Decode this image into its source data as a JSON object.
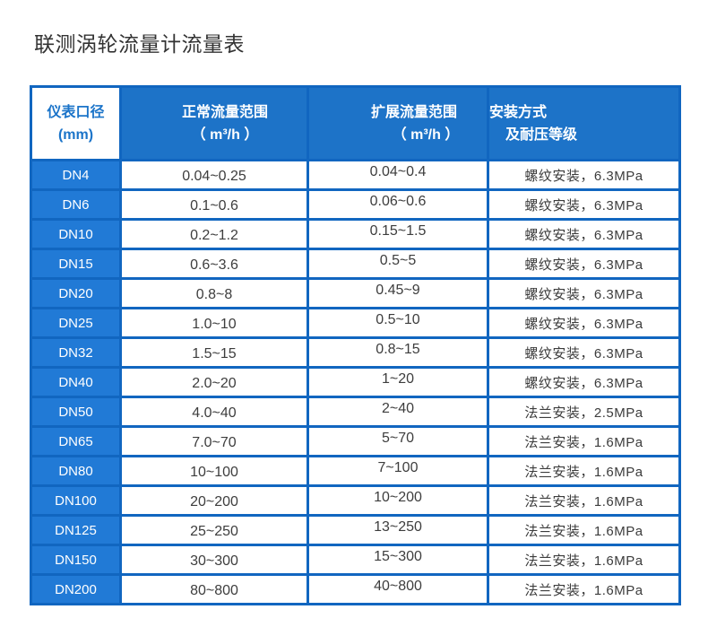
{
  "page": {
    "title": "联测涡轮流量计流量表"
  },
  "colors": {
    "header_bg": "#1d73c8",
    "row_label_bg": "#217ad6",
    "border_blue": "#1166c0",
    "header_text": "#ffffff",
    "first_header_text": "#1b74c9",
    "cell_text": "#3d3d3d",
    "title_text": "#333333"
  },
  "table": {
    "headers": [
      {
        "line1": "仪表口径",
        "line2": "(mm)"
      },
      {
        "line1": "正常流量范围",
        "line2": "（ m³/h ）"
      },
      {
        "line1": "扩展流量范围",
        "line2": "（ m³/h ）"
      },
      {
        "line1": "安装方式",
        "line2": "及耐压等级"
      }
    ],
    "rows": [
      {
        "dn": "DN4",
        "normal": "0.04~0.25",
        "extended": "0.04~0.4",
        "install": "螺纹安装，6.3MPa"
      },
      {
        "dn": "DN6",
        "normal": "0.1~0.6",
        "extended": "0.06~0.6",
        "install": "螺纹安装，6.3MPa"
      },
      {
        "dn": "DN10",
        "normal": "0.2~1.2",
        "extended": "0.15~1.5",
        "install": "螺纹安装，6.3MPa"
      },
      {
        "dn": "DN15",
        "normal": "0.6~3.6",
        "extended": "0.5~5",
        "install": "螺纹安装，6.3MPa"
      },
      {
        "dn": "DN20",
        "normal": "0.8~8",
        "extended": "0.45~9",
        "install": "螺纹安装，6.3MPa"
      },
      {
        "dn": "DN25",
        "normal": "1.0~10",
        "extended": "0.5~10",
        "install": "螺纹安装，6.3MPa"
      },
      {
        "dn": "DN32",
        "normal": "1.5~15",
        "extended": "0.8~15",
        "install": "螺纹安装，6.3MPa"
      },
      {
        "dn": "DN40",
        "normal": "2.0~20",
        "extended": "1~20",
        "install": "螺纹安装，6.3MPa"
      },
      {
        "dn": "DN50",
        "normal": "4.0~40",
        "extended": "2~40",
        "install": "法兰安装，2.5MPa"
      },
      {
        "dn": "DN65",
        "normal": "7.0~70",
        "extended": "5~70",
        "install": "法兰安装，1.6MPa"
      },
      {
        "dn": "DN80",
        "normal": "10~100",
        "extended": "7~100",
        "install": "法兰安装，1.6MPa"
      },
      {
        "dn": "DN100",
        "normal": "20~200",
        "extended": "10~200",
        "install": "法兰安装，1.6MPa"
      },
      {
        "dn": "DN125",
        "normal": "25~250",
        "extended": "13~250",
        "install": "法兰安装，1.6MPa"
      },
      {
        "dn": "DN150",
        "normal": "30~300",
        "extended": "15~300",
        "install": "法兰安装，1.6MPa"
      },
      {
        "dn": "DN200",
        "normal": "80~800",
        "extended": "40~800",
        "install": "法兰安装，1.6MPa"
      }
    ]
  }
}
